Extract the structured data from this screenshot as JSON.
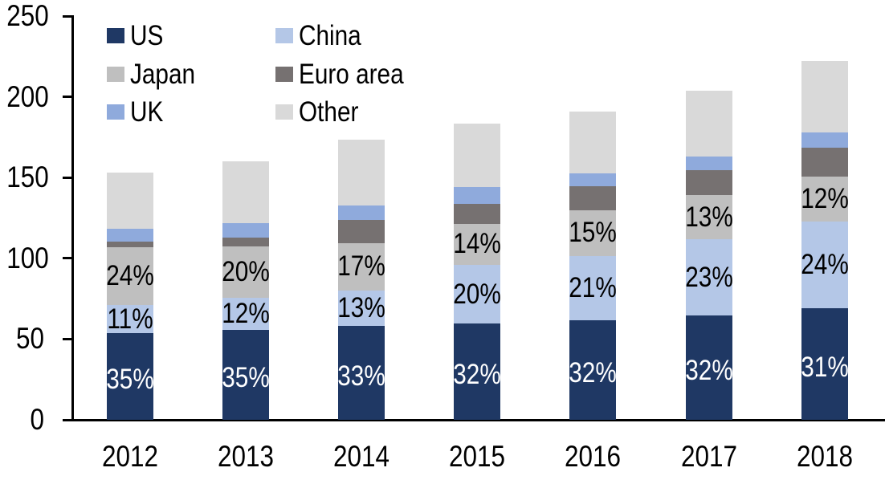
{
  "chart_data": {
    "type": "bar",
    "variant": "stacked",
    "title": "",
    "xlabel": "",
    "ylabel": "",
    "categories": [
      "2012",
      "2013",
      "2014",
      "2015",
      "2016",
      "2017",
      "2018"
    ],
    "series": [
      {
        "name": "US",
        "color": "#1F3864",
        "values": [
          53.5,
          55.5,
          58.0,
          59.5,
          61.5,
          64.5,
          69.0
        ],
        "segment_labels": [
          "35%",
          "35%",
          "33%",
          "32%",
          "32%",
          "32%",
          "31%"
        ],
        "segment_label_color": "#FFFFFF"
      },
      {
        "name": "China",
        "color": "#B4C7E7",
        "values": [
          17.5,
          20.0,
          22.0,
          36.5,
          40.0,
          47.5,
          54.0
        ],
        "segment_labels": [
          "11%",
          "12%",
          "13%",
          "20%",
          "21%",
          "23%",
          "24%"
        ],
        "segment_label_color": "#000000"
      },
      {
        "name": "Japan",
        "color": "#BFBFBF",
        "values": [
          36.0,
          32.0,
          29.5,
          25.5,
          28.5,
          27.0,
          27.5
        ],
        "segment_labels": [
          "24%",
          "20%",
          "17%",
          "14%",
          "15%",
          "13%",
          "12%"
        ],
        "segment_label_color": "#000000"
      },
      {
        "name": "Euro area",
        "color": "#767171",
        "values": [
          3.5,
          5.5,
          14.5,
          12.5,
          14.5,
          15.5,
          18.0
        ],
        "segment_labels": null,
        "segment_label_color": null
      },
      {
        "name": "UK",
        "color": "#8FAADC",
        "values": [
          8.0,
          9.0,
          9.0,
          10.0,
          8.0,
          8.5,
          9.5
        ],
        "segment_labels": null,
        "segment_label_color": null
      },
      {
        "name": "Other",
        "color": "#D9D9D9",
        "values": [
          34.5,
          38.0,
          40.5,
          39.5,
          38.5,
          41.0,
          44.5
        ],
        "segment_labels": null,
        "segment_label_color": null
      }
    ],
    "stack_totals": [
      153,
      160,
      173.5,
      183.5,
      191,
      204,
      222.5
    ],
    "y_axis": {
      "min": 0,
      "max": 250,
      "tick_step": 50,
      "tick_labels": [
        "0",
        "50",
        "100",
        "150",
        "200",
        "250"
      ]
    },
    "legend": {
      "position": "top-left",
      "columns": 2,
      "entries": [
        "US",
        "China",
        "Japan",
        "Euro area",
        "UK",
        "Other"
      ]
    },
    "layout": {
      "grid": false,
      "axis_color": "#000000",
      "background": "#FFFFFF"
    }
  }
}
